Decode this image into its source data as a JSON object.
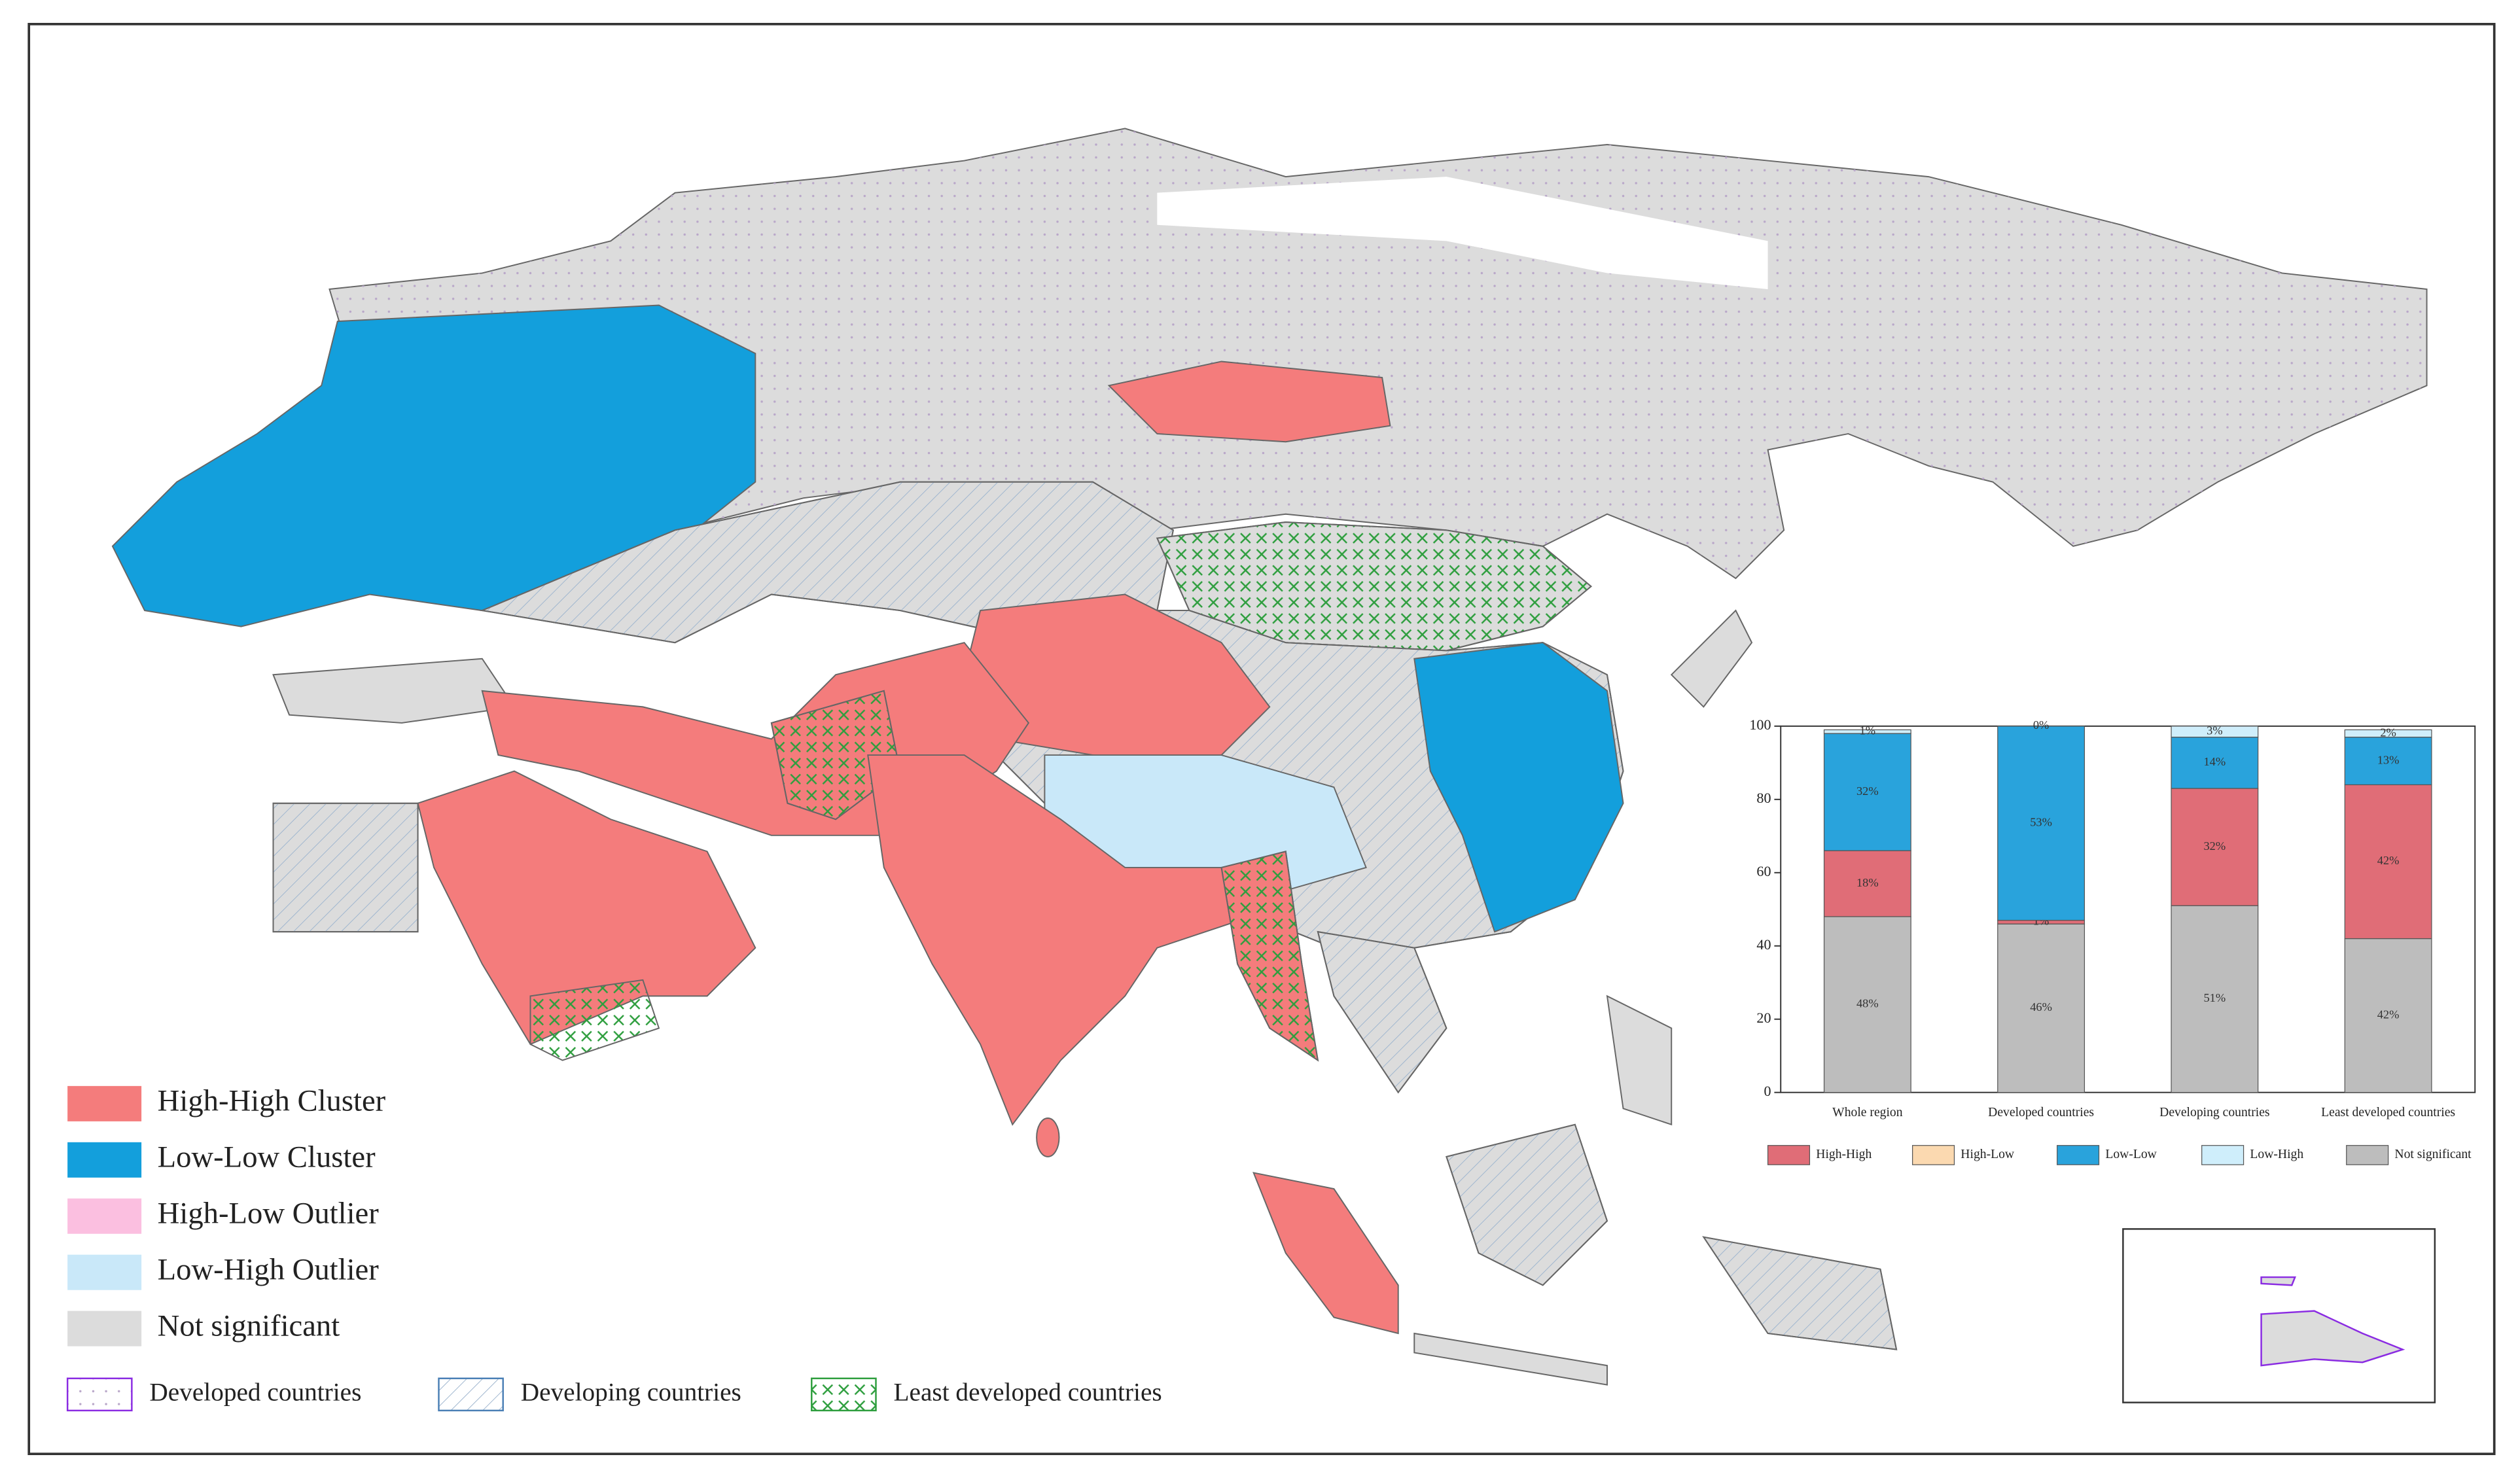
{
  "legend": {
    "classes": [
      {
        "label": "High-High Cluster",
        "color": "#f47c7c"
      },
      {
        "label": "Low-Low Cluster",
        "color": "#139fdc"
      },
      {
        "label": "High-Low Outlier",
        "color": "#fbbfe0"
      },
      {
        "label": "Low-High Outlier",
        "color": "#c9e8f9"
      },
      {
        "label": "Not significant",
        "color": "#dcdcdc"
      }
    ],
    "groups": [
      "Developed countries",
      "Developing countries",
      "Least developed countries"
    ]
  },
  "chart_data": {
    "type": "stacked_bar",
    "categories": [
      "Whole region",
      "Developed countries",
      "Developing countries",
      "Least developed countries"
    ],
    "series": [
      {
        "name": "High-High",
        "color": "#e06d77",
        "values": [
          18,
          1,
          32,
          42
        ],
        "value_labels": [
          "18%",
          "1%",
          "32%",
          "42%"
        ]
      },
      {
        "name": "High-Low",
        "color": "#fbd9b0",
        "values": [
          0,
          0,
          0,
          0
        ],
        "value_labels": [
          null,
          null,
          null,
          null
        ]
      },
      {
        "name": "Low-Low",
        "color": "#29a3dc",
        "values": [
          32,
          53,
          14,
          13
        ],
        "value_labels": [
          "32%",
          "53%",
          "14%",
          "13%"
        ]
      },
      {
        "name": "Low-High",
        "color": "#cfeefb",
        "values": [
          1,
          0,
          3,
          2
        ],
        "value_labels": [
          "1%",
          "0%",
          "3%",
          "2%"
        ]
      },
      {
        "name": "Not significant",
        "color": "#bdbdbd",
        "values": [
          48,
          46,
          51,
          42
        ],
        "value_labels": [
          "48%",
          "46%",
          "51%",
          "42%"
        ]
      }
    ],
    "ylim": [
      0,
      100
    ],
    "yticks": [
      0,
      20,
      40,
      60,
      80,
      100
    ]
  }
}
